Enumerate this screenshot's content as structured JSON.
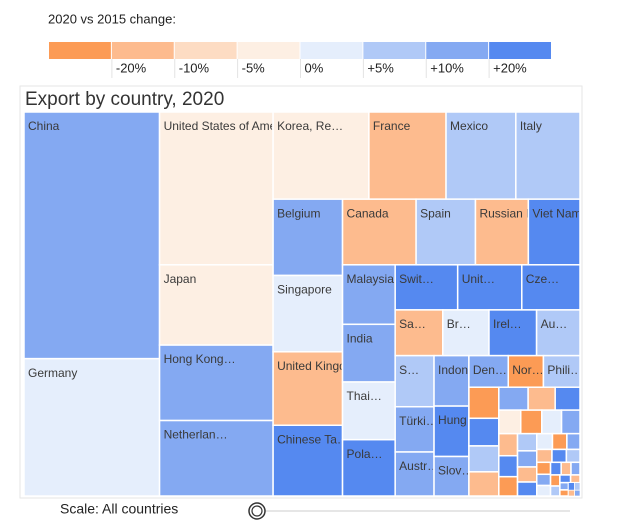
{
  "chart_data": {
    "type": "treemap",
    "title": "Export by country, 2020",
    "legend": {
      "title": "2020 vs 2015 change:",
      "colors": [
        "#fc9b55",
        "#fdbb8e",
        "#fddcc3",
        "#fdefe3",
        "#e5eefc",
        "#b0c9f7",
        "#84a9f2",
        "#5589f0"
      ],
      "labels": [
        "-20%",
        "-10%",
        "-5%",
        "0%",
        "+5%",
        "+10%",
        "+20%"
      ]
    },
    "scale_label": "Scale: All countries",
    "categories": [
      "China",
      "Germany",
      "United States of America",
      "Japan",
      "Hong Kong…",
      "Netherlan…",
      "Korea, Re…",
      "France",
      "Mexico",
      "Italy",
      "Belgium",
      "Singapore",
      "United Kingd…",
      "Chinese Ta…",
      "Canada",
      "Spain",
      "Russian Fe…",
      "Viet Nam",
      "Malaysia",
      "India",
      "Thai…",
      "Pola…",
      "Swit…",
      "Unit…",
      "Cze…",
      "Sa…",
      "Br…",
      "Irel…",
      "Au…",
      "S…",
      "Türki…",
      "Austr…",
      "Indon…",
      "Hung…",
      "Slov…",
      "Den…",
      "Nor…",
      "Phili…",
      null,
      null,
      null,
      null,
      null,
      null,
      null,
      null,
      null,
      null,
      null,
      null,
      null,
      null,
      null,
      null,
      null,
      null,
      null,
      null,
      null,
      null,
      null,
      null,
      null,
      null,
      null,
      null,
      null,
      null,
      null,
      null,
      null,
      null,
      null,
      null,
      null,
      null,
      null,
      null
    ],
    "values": [
      32375,
      18025,
      16800,
      8820,
      8295,
      8295,
      8085,
      6510,
      5890,
      5415,
      5130,
      5130,
      4940,
      4756,
      4674,
      3772,
      3362,
      3280,
      3034,
      2940,
      2940,
      2870,
      2730,
      2800,
      2542,
      2108,
      2046,
      2108,
      1922,
      1922,
      1702,
      1656,
      1702,
      1702,
      1333,
      1204,
      1075,
      1118,
      900,
      800,
      750,
      700,
      650,
      600,
      550,
      500,
      480,
      450,
      420,
      400,
      380,
      350,
      320,
      300,
      280,
      260,
      240,
      220,
      200,
      190,
      180,
      170,
      160,
      150,
      140,
      130,
      120,
      110,
      100,
      90,
      80,
      70,
      60,
      50,
      45,
      40,
      35,
      30
    ],
    "colors": [
      "#84a9f2",
      "#e5eefc",
      "#fdefe3",
      "#fdefe3",
      "#84a9f2",
      "#84a9f2",
      "#fdefe3",
      "#fdbb8e",
      "#b0c9f7",
      "#b0c9f7",
      "#84a9f2",
      "#e5eefc",
      "#fdbb8e",
      "#5589f0",
      "#fdbb8e",
      "#b0c9f7",
      "#fdbb8e",
      "#5589f0",
      "#84a9f2",
      "#84a9f2",
      "#e5eefc",
      "#5589f0",
      "#5589f0",
      "#5589f0",
      "#5589f0",
      "#fdbb8e",
      "#e5eefc",
      "#5589f0",
      "#b0c9f7",
      "#b0c9f7",
      "#84a9f2",
      "#84a9f2",
      "#84a9f2",
      "#5589f0",
      "#84a9f2",
      "#84a9f2",
      "#fc9b55",
      "#b0c9f7",
      "#fc9b55",
      "#5589f0",
      "#b0c9f7",
      "#fdbb8e",
      "#84a9f2",
      "#fdbb8e",
      "#5589f0",
      "#fdefe3",
      "#fc9b55",
      "#e5eefc",
      "#84a9f2",
      "#fdbb8e",
      "#5589f0",
      "#fc9b55",
      "#b0c9f7",
      "#84a9f2",
      "#fdbb8e",
      "#5589f0",
      "#e5eefc",
      "#fc9b55",
      "#84a9f2",
      "#fdbb8e",
      "#5589f0",
      "#b0c9f7",
      "#fc9b55",
      "#84a9f2",
      "#e5eefc",
      "#5589f0",
      "#fdbb8e",
      "#84a9f2",
      "#fc9b55",
      "#b0c9f7",
      "#5589f0",
      "#fdbb8e",
      "#84a9f2",
      "#fc9b55",
      "#5589f0",
      "#b0c9f7",
      "#fdbb8e",
      "#84a9f2"
    ]
  }
}
